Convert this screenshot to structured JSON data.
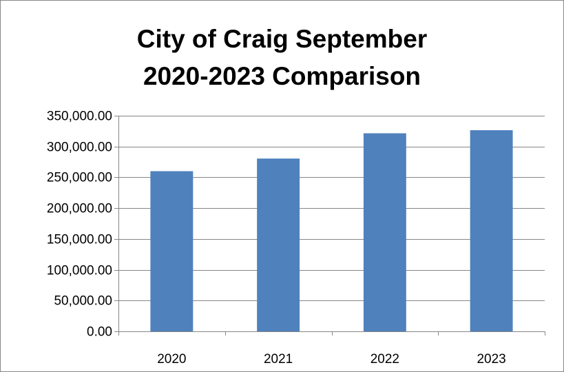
{
  "chart_data": {
    "type": "bar",
    "title_lines": [
      "City of Craig September",
      "2020-2023 Comparison"
    ],
    "categories": [
      "2020",
      "2021",
      "2022",
      "2023"
    ],
    "values": [
      260000,
      280500,
      321500,
      326500
    ],
    "ylim": [
      0,
      350000
    ],
    "yticks": [
      0,
      50000,
      100000,
      150000,
      200000,
      250000,
      300000,
      350000
    ],
    "ytick_labels": [
      "0.00",
      "50,000.00",
      "100,000.00",
      "150,000.00",
      "200,000.00",
      "250,000.00",
      "300,000.00",
      "350,000.00"
    ],
    "xlabel": "",
    "ylabel": "",
    "grid": true,
    "legend": "none",
    "bar_color": "#4F81BD",
    "grid_color": "#868686"
  }
}
